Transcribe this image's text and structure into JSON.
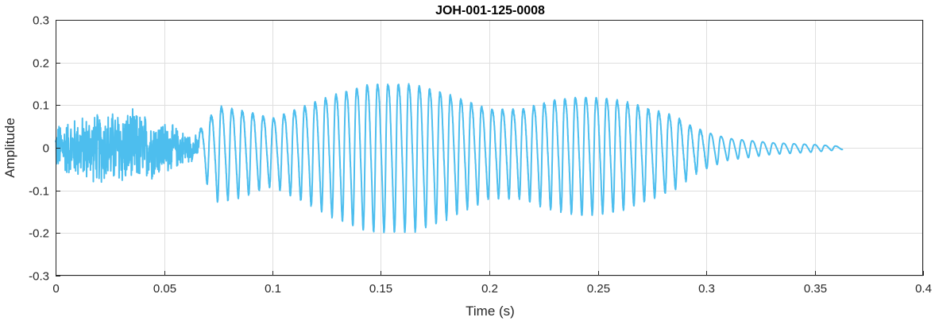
{
  "chart_data": {
    "type": "line",
    "title": "JOH-001-125-0008",
    "xlabel": "Time (s)",
    "ylabel": "Amplitude",
    "xlim": [
      0,
      0.4
    ],
    "ylim": [
      -0.3,
      0.3
    ],
    "x_ticks": [
      0,
      0.05,
      0.1,
      0.15,
      0.2,
      0.25,
      0.3,
      0.35,
      0.4
    ],
    "x_tick_labels": [
      "0",
      "0.05",
      "0.1",
      "0.15",
      "0.2",
      "0.25",
      "0.3",
      "0.35",
      "0.4"
    ],
    "y_ticks": [
      -0.3,
      -0.2,
      -0.1,
      0,
      0.1,
      0.2,
      0.3
    ],
    "y_tick_labels": [
      "-0.3",
      "-0.2",
      "-0.1",
      "0",
      "0.1",
      "0.2",
      "0.3"
    ],
    "grid": true,
    "series": [
      {
        "color": "#4dbeee",
        "segments": [
          {
            "kind": "noise",
            "t_start": 0,
            "t_end": 0.066,
            "envelope": [
              [
                0,
                0.06
              ],
              [
                0.01,
                0.08
              ],
              [
                0.02,
                0.09
              ],
              [
                0.03,
                0.1
              ],
              [
                0.04,
                0.09
              ],
              [
                0.05,
                0.07
              ],
              [
                0.06,
                0.04
              ],
              [
                0.066,
                0.03
              ]
            ]
          },
          {
            "kind": "periodic",
            "t_start": 0.066,
            "t_end": 0.363,
            "period": 0.0048,
            "envelope": [
              [
                0.066,
                0.05
              ],
              [
                0.075,
                0.13
              ],
              [
                0.09,
                0.11
              ],
              [
                0.1,
                0.09
              ],
              [
                0.115,
                0.13
              ],
              [
                0.13,
                0.17
              ],
              [
                0.145,
                0.2
              ],
              [
                0.155,
                0.2
              ],
              [
                0.165,
                0.2
              ],
              [
                0.18,
                0.17
              ],
              [
                0.2,
                0.12
              ],
              [
                0.215,
                0.12
              ],
              [
                0.23,
                0.15
              ],
              [
                0.245,
                0.16
              ],
              [
                0.26,
                0.15
              ],
              [
                0.275,
                0.12
              ],
              [
                0.285,
                0.1
              ],
              [
                0.295,
                0.06
              ],
              [
                0.31,
                0.03
              ],
              [
                0.33,
                0.016
              ],
              [
                0.35,
                0.01
              ],
              [
                0.363,
                0.004
              ]
            ]
          }
        ]
      }
    ]
  }
}
